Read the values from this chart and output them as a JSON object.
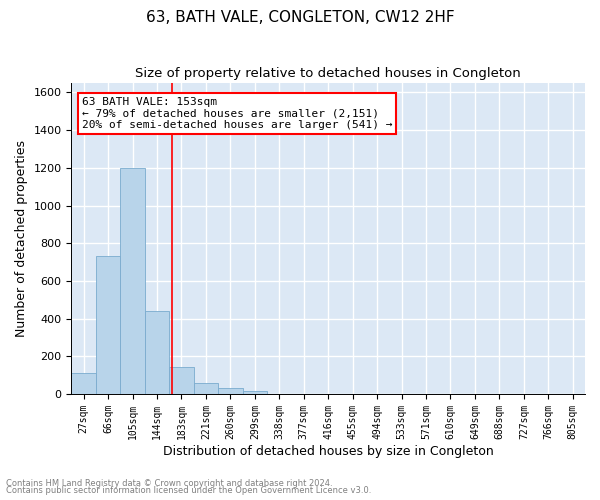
{
  "title": "63, BATH VALE, CONGLETON, CW12 2HF",
  "subtitle": "Size of property relative to detached houses in Congleton",
  "xlabel": "Distribution of detached houses by size in Congleton",
  "ylabel": "Number of detached properties",
  "footnote1": "Contains HM Land Registry data © Crown copyright and database right 2024.",
  "footnote2": "Contains public sector information licensed under the Open Government Licence v3.0.",
  "bar_labels": [
    "27sqm",
    "66sqm",
    "105sqm",
    "144sqm",
    "183sqm",
    "221sqm",
    "260sqm",
    "299sqm",
    "338sqm",
    "377sqm",
    "416sqm",
    "455sqm",
    "494sqm",
    "533sqm",
    "571sqm",
    "610sqm",
    "649sqm",
    "688sqm",
    "727sqm",
    "766sqm",
    "805sqm"
  ],
  "bar_values": [
    110,
    730,
    1200,
    440,
    145,
    57,
    32,
    15,
    0,
    0,
    0,
    0,
    0,
    0,
    0,
    0,
    0,
    0,
    0,
    0,
    0
  ],
  "bar_color": "#b8d4ea",
  "bar_edge_color": "#7aabce",
  "vline_x": 3.62,
  "vline_color": "red",
  "annotation_text": "63 BATH VALE: 153sqm\n← 79% of detached houses are smaller (2,151)\n20% of semi-detached houses are larger (541) →",
  "annotation_box_color": "white",
  "annotation_box_edge_color": "red",
  "ylim": [
    0,
    1650
  ],
  "yticks": [
    0,
    200,
    400,
    600,
    800,
    1000,
    1200,
    1400,
    1600
  ],
  "background_color": "#dce8f5",
  "grid_color": "white",
  "title_fontsize": 11,
  "subtitle_fontsize": 9.5,
  "ylabel_fontsize": 9,
  "xlabel_fontsize": 9,
  "tick_fontsize": 7,
  "annotation_fontsize": 8,
  "footnote_fontsize": 6
}
